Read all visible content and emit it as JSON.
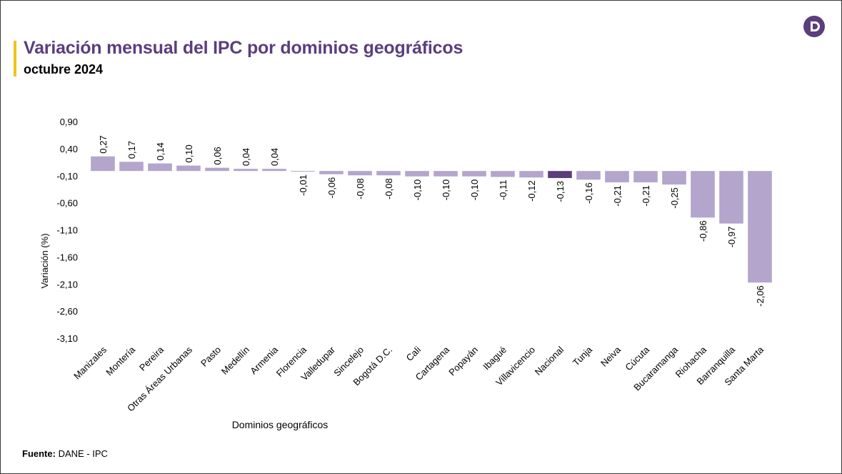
{
  "header": {
    "title": "Variación mensual del IPC por dominios geográficos",
    "subtitle": "octubre 2024"
  },
  "footer": {
    "source_label": "Fuente:",
    "source_value": "DANE - IPC"
  },
  "logo": {
    "icon": "dane-logo-icon",
    "color": "#5b3e7e"
  },
  "colors": {
    "bar": "#b4a5cd",
    "highlight": "#5b3e7e",
    "accent": "#f0c419",
    "title": "#5b3e7e"
  },
  "chart_data": {
    "type": "bar",
    "title": "Variación mensual del IPC por dominios geográficos",
    "subtitle": "octubre 2024",
    "xlabel": "Dominios geográficos",
    "ylabel": "Variación (%)",
    "ylim": [
      -3.1,
      0.9
    ],
    "yticks": [
      "0,90",
      "0,40",
      "-0,10",
      "-0,60",
      "-1,10",
      "-1,60",
      "-2,10",
      "-2,60",
      "-3,10"
    ],
    "ytick_values": [
      0.9,
      0.4,
      -0.1,
      -0.6,
      -1.1,
      -1.6,
      -2.1,
      -2.6,
      -3.1
    ],
    "grid": false,
    "highlight_category": "Nacional",
    "categories": [
      "Manizales",
      "Montería",
      "Pereira",
      "Otras Áreas Urbanas",
      "Pasto",
      "Medellín",
      "Armenia",
      "Florencia",
      "Valledupar",
      "Sincelejo",
      "Bogotá D.C.",
      "Cali",
      "Cartagena",
      "Popayán",
      "Ibagué",
      "Villavicencio",
      "Nacional",
      "Tunja",
      "Neiva",
      "Cúcuta",
      "Bucaramanga",
      "Riohacha",
      "Barranquilla",
      "Santa Marta"
    ],
    "values": [
      0.27,
      0.17,
      0.14,
      0.1,
      0.06,
      0.04,
      0.04,
      -0.01,
      -0.06,
      -0.08,
      -0.08,
      -0.1,
      -0.1,
      -0.1,
      -0.11,
      -0.12,
      -0.13,
      -0.16,
      -0.21,
      -0.21,
      -0.25,
      -0.86,
      -0.97,
      -2.06
    ],
    "value_labels": [
      "0,27",
      "0,17",
      "0,14",
      "0,10",
      "0,06",
      "0,04",
      "0,04",
      "-0,01",
      "-0,06",
      "-0,08",
      "-0,08",
      "-0,10",
      "-0,10",
      "-0,10",
      "-0,11",
      "-0,12",
      "-0,13",
      "-0,16",
      "-0,21",
      "-0,21",
      "-0,25",
      "-0,86",
      "-0,97",
      "-2,06"
    ]
  }
}
